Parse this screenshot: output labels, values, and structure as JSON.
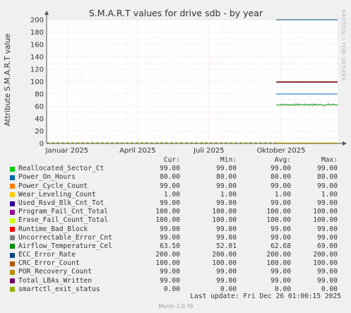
{
  "chart_data": {
    "type": "line",
    "title": "S.M.A.R.T values for drive sdb - by year",
    "ylabel": "Attribute S.M.A.R.T value",
    "ylim": [
      0,
      200
    ],
    "yticks": [
      0,
      20,
      40,
      60,
      80,
      100,
      120,
      140,
      160,
      180,
      200
    ],
    "x_range": [
      "2024-12-20",
      "2025-12-26"
    ],
    "xticks": [
      {
        "label": "Januar 2025",
        "date": "2025-01-15"
      },
      {
        "label": "April 2025",
        "date": "2025-04-15"
      },
      {
        "label": "Juli 2025",
        "date": "2025-07-15"
      },
      {
        "label": "Oktober 2025",
        "date": "2025-10-15"
      }
    ],
    "data_start": "2025-10-09",
    "grid": true,
    "watermark": "RRDTOOL / TOBI OETIKER",
    "series": [
      {
        "name": "Reallocated_Sector_Ct",
        "color": "#00cc00",
        "cur": "99.00",
        "min": "99.00",
        "avg": "99.00",
        "max": "99.00",
        "level": 99
      },
      {
        "name": "Power_On_Hours",
        "color": "#0066b3",
        "cur": "80.00",
        "min": "80.00",
        "avg": "80.00",
        "max": "80.00",
        "level": 80
      },
      {
        "name": "Power_Cycle_Count",
        "color": "#ff8000",
        "cur": "99.00",
        "min": "99.00",
        "avg": "99.00",
        "max": "99.00",
        "level": 99
      },
      {
        "name": "Wear_Leveling_Count",
        "color": "#ffcc00",
        "cur": "1.00",
        "min": "1.00",
        "avg": "1.00",
        "max": "1.00",
        "level": 1
      },
      {
        "name": "Used_Rsvd_Blk_Cnt_Tot",
        "color": "#330099",
        "cur": "99.00",
        "min": "99.00",
        "avg": "99.00",
        "max": "99.00",
        "level": 99
      },
      {
        "name": "Program_Fail_Cnt_Total",
        "color": "#990099",
        "cur": "100.00",
        "min": "100.00",
        "avg": "100.00",
        "max": "100.00",
        "level": 100
      },
      {
        "name": "Erase_Fail_Count_Total",
        "color": "#ccff00",
        "cur": "100.00",
        "min": "100.00",
        "avg": "100.00",
        "max": "100.00",
        "level": 100
      },
      {
        "name": "Runtime_Bad_Block",
        "color": "#ff0000",
        "cur": "99.00",
        "min": "99.00",
        "avg": "99.00",
        "max": "99.00",
        "level": 99
      },
      {
        "name": "Uncorrectable_Error_Cnt",
        "color": "#808080",
        "cur": "99.00",
        "min": "99.00",
        "avg": "99.00",
        "max": "99.00",
        "level": 99
      },
      {
        "name": "Airflow_Temperature_Cel",
        "color": "#008f00",
        "cur": "63.50",
        "min": "52.01",
        "avg": "62.68",
        "max": "69.00",
        "level": 62.68,
        "noisy": true
      },
      {
        "name": "ECC_Error_Rate",
        "color": "#00487d",
        "cur": "200.00",
        "min": "200.00",
        "avg": "200.00",
        "max": "200.00",
        "level": 200
      },
      {
        "name": "CRC_Error_Count",
        "color": "#b35a00",
        "cur": "100.00",
        "min": "100.00",
        "avg": "100.00",
        "max": "100.00",
        "level": 100
      },
      {
        "name": "POR_Recovery_Count",
        "color": "#b38f00",
        "cur": "99.00",
        "min": "99.00",
        "avg": "99.00",
        "max": "99.00",
        "level": 99
      },
      {
        "name": "Total_LBAs_Written",
        "color": "#6b006b",
        "cur": "99.00",
        "min": "99.00",
        "avg": "99.00",
        "max": "99.00",
        "level": 99
      },
      {
        "name": "smartctl_exit_status",
        "color": "#8fb300",
        "cur": "0.00",
        "min": "0.00",
        "avg": "0.00",
        "max": "0.00",
        "level": 0
      }
    ]
  },
  "legend": {
    "col_cur": "Cur:",
    "col_min": "Min:",
    "col_avg": "Avg:",
    "col_max": "Max:"
  },
  "last_update": "Last update: Fri Dec 26 01:00:15 2025",
  "footer": "Munin 2.0.76"
}
